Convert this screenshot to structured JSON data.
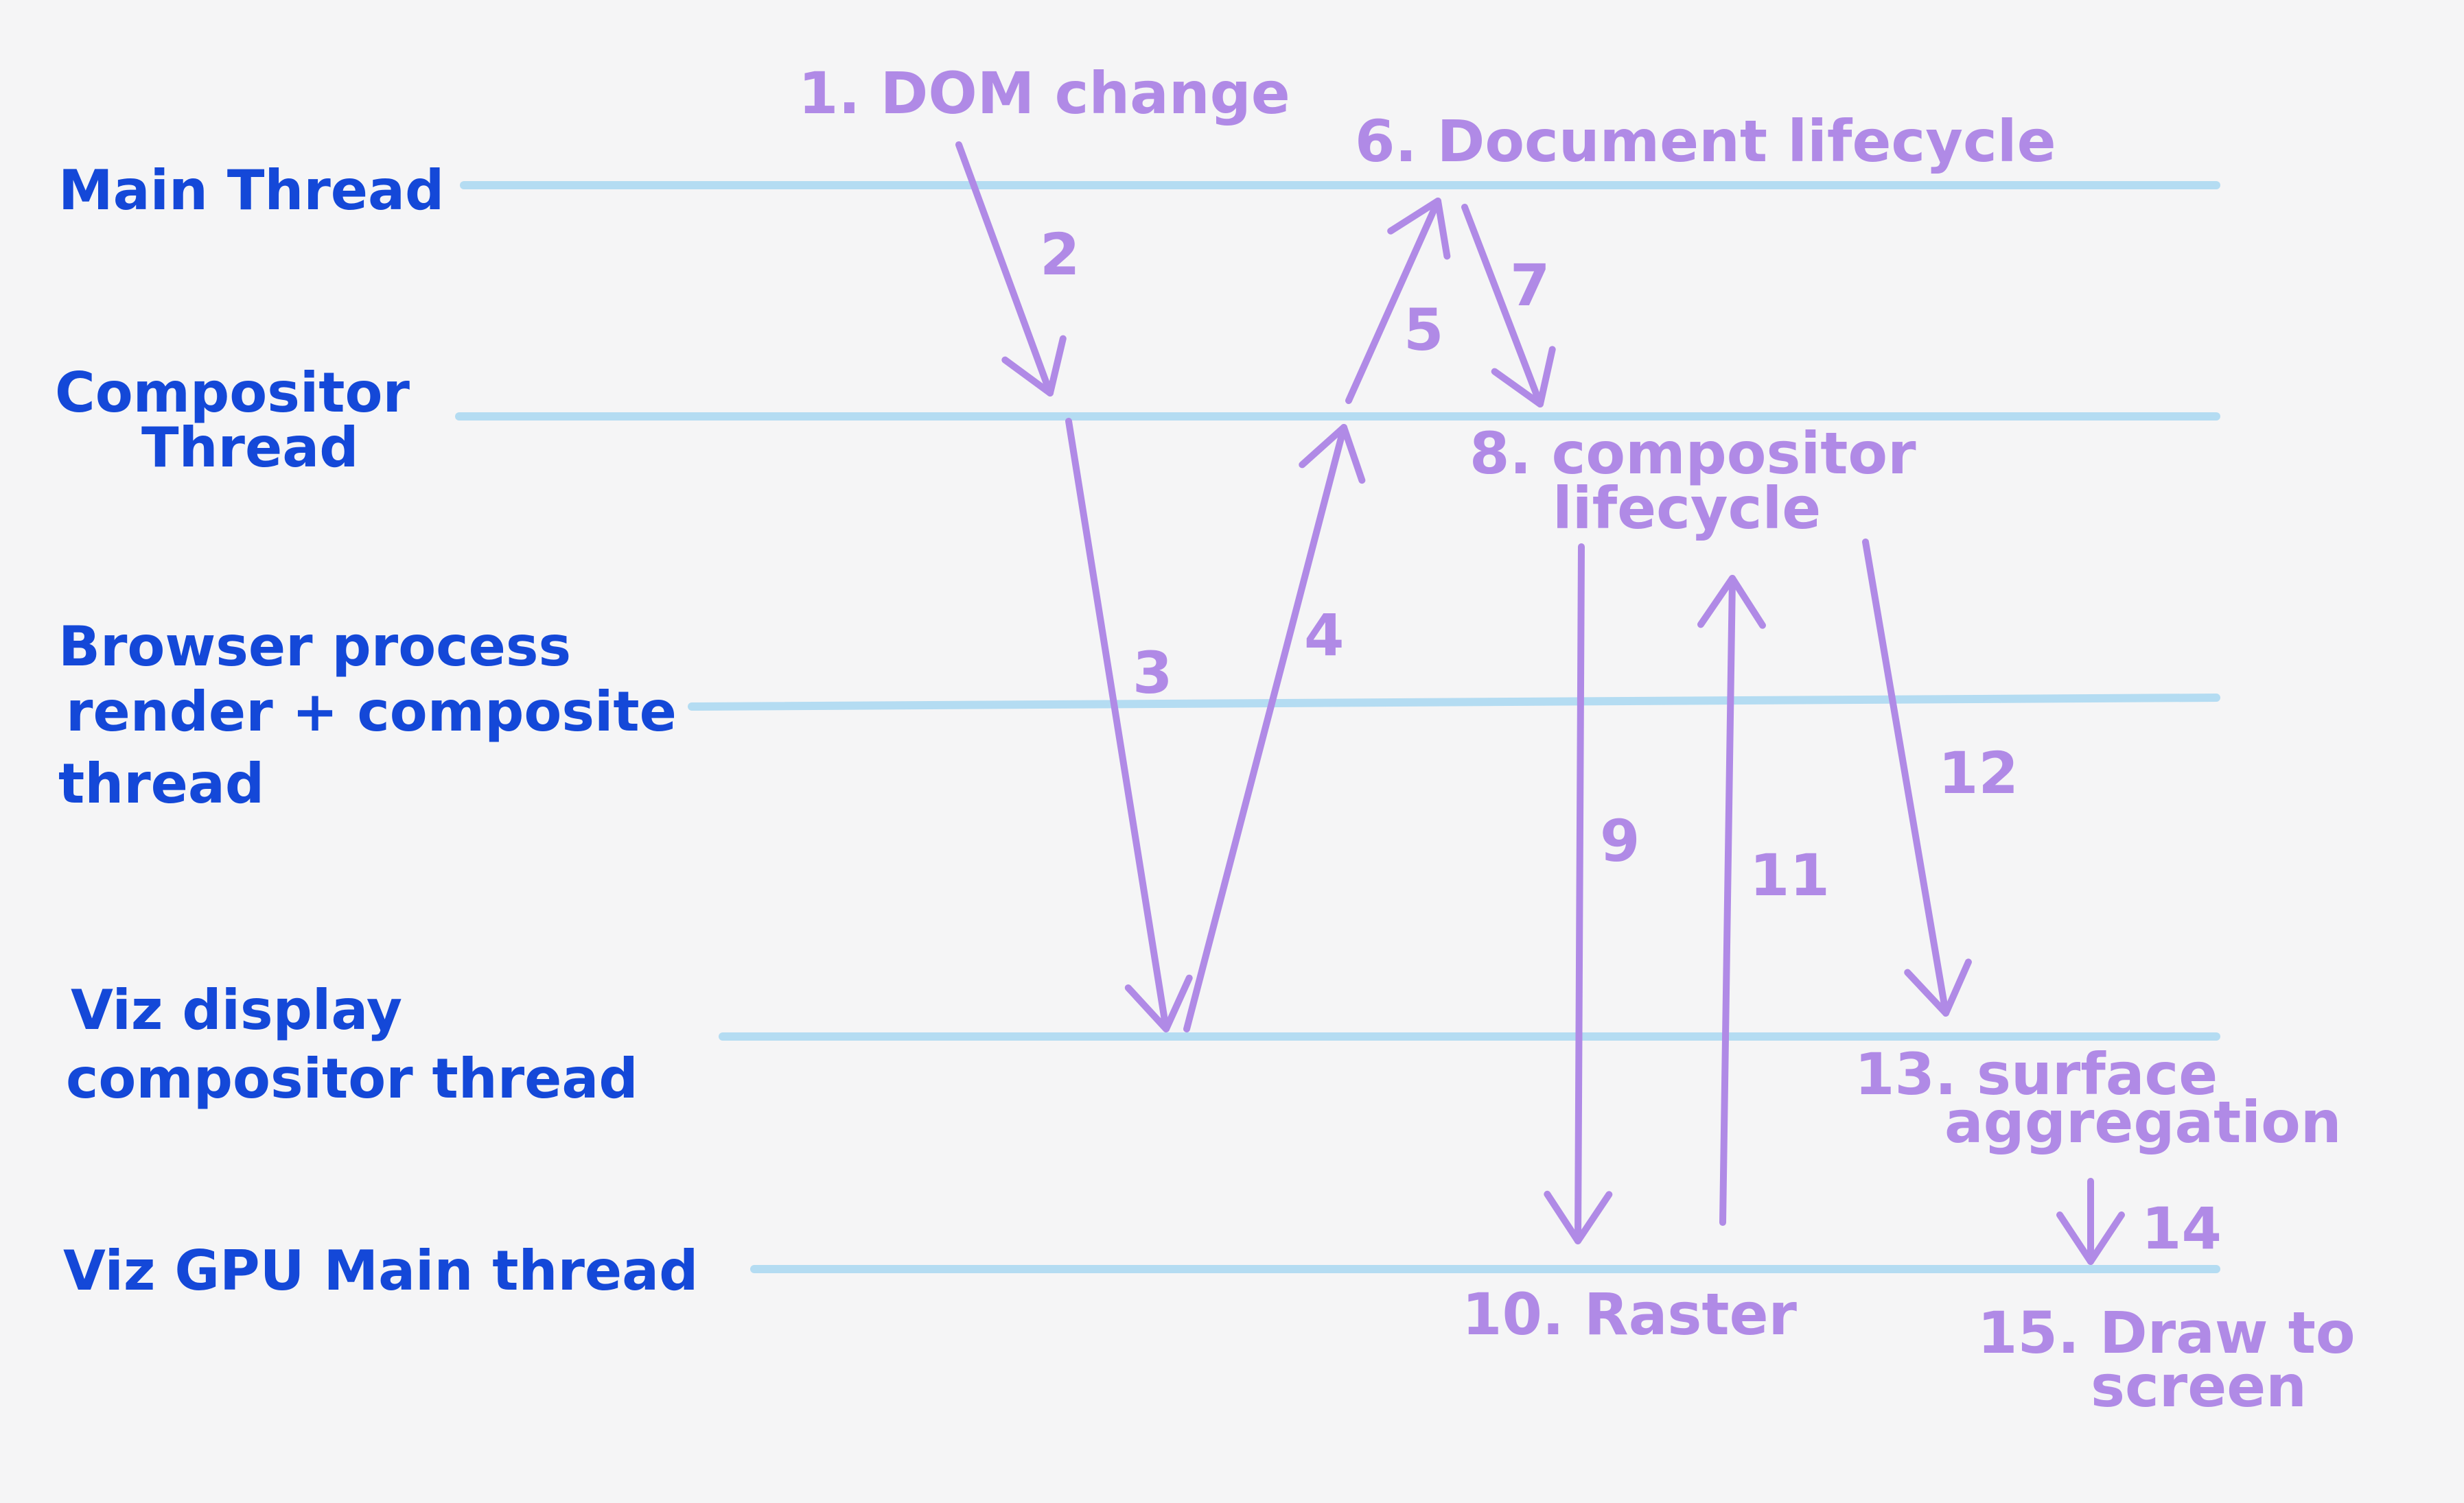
{
  "colors": {
    "background": "#f5f5f6",
    "lane_text": "#1448d8",
    "step_text": "#b08ae6",
    "lane_line": "#b4dcf2"
  },
  "lanes": [
    {
      "lines": [
        "Main Thread"
      ]
    },
    {
      "lines": [
        "Compositor",
        "Thread"
      ]
    },
    {
      "lines": [
        "Browser process",
        "render + composite",
        "thread"
      ]
    },
    {
      "lines": [
        "Viz display",
        "compositor thread"
      ]
    },
    {
      "lines": [
        "Viz GPU Main thread"
      ]
    }
  ],
  "steps": {
    "s1": "1. DOM change",
    "s2": "2",
    "s3": "3",
    "s4": "4",
    "s5": "5",
    "s6": "6. Document lifecycle",
    "s7": "7",
    "s8a": "8. compositor",
    "s8b": "lifecycle",
    "s9": "9",
    "s10": "10. Raster",
    "s11": "11",
    "s12": "12",
    "s13a": "13. surface",
    "s13b": "aggregation",
    "s14": "14",
    "s15a": "15. Draw to",
    "s15b": "screen"
  }
}
